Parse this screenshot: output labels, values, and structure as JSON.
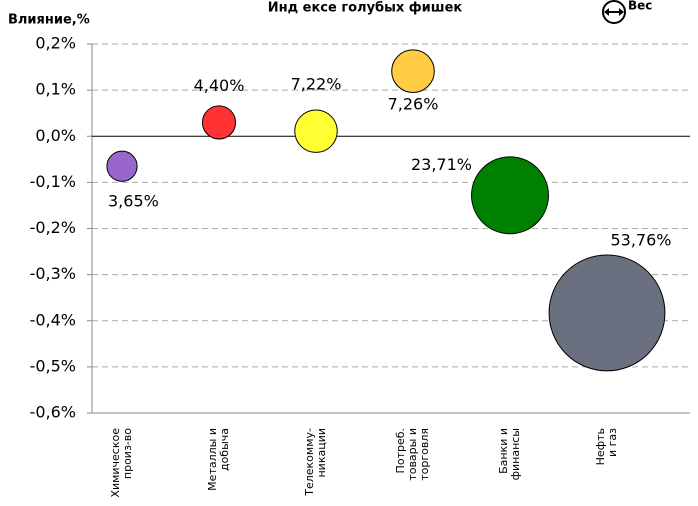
{
  "chart_data": {
    "type": "bubble",
    "title": "Инд ексе голубых фишек",
    "y_label": "Влияние,%",
    "legend_label": "Вес",
    "categories": [
      "Химическое\nпроиз-во",
      "Металлы и\nдобыча",
      "Телекомму-\nникации",
      "Потреб.\nтовары и\nторговля",
      "Банки и\nфинансы",
      "Нефть\nи газ"
    ],
    "values": [
      -0.065,
      0.03,
      0.011,
      0.141,
      -0.128,
      -0.383
    ],
    "sizes": [
      3.65,
      4.4,
      7.22,
      7.26,
      23.71,
      53.76
    ],
    "value_labels": [
      "3,65%",
      "4,40%",
      "7,22%",
      "7,26%",
      "23,71%",
      "53,76%"
    ],
    "colors": [
      "#9966cc",
      "#ff3333",
      "#ffff33",
      "#ffcc44",
      "#008000",
      "#6b7080"
    ],
    "ylim": [
      -0.6,
      0.2
    ],
    "yticks": [
      {
        "value": 0.2,
        "label": "0,2%"
      },
      {
        "value": 0.1,
        "label": "0,1%"
      },
      {
        "value": 0,
        "label": "0,0%"
      },
      {
        "value": -0.1,
        "label": "-0,1%"
      },
      {
        "value": -0.2,
        "label": "-0,2%"
      },
      {
        "value": -0.3,
        "label": "-0,3%"
      },
      {
        "value": -0.4,
        "label": "-0,4%"
      },
      {
        "value": -0.5,
        "label": "-0,5%"
      },
      {
        "value": -0.6,
        "label": "-0,6%"
      }
    ],
    "grid": true
  }
}
